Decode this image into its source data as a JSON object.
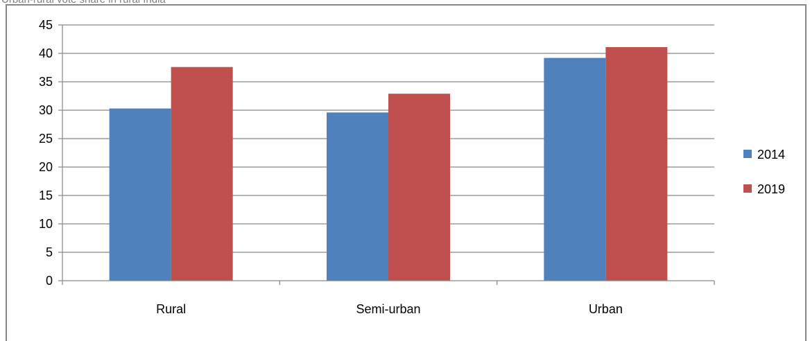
{
  "caption": "Urban-rural vote share in rural India",
  "chart_data": {
    "type": "bar",
    "categories": [
      "Rural",
      "Semi-urban",
      "Urban"
    ],
    "series": [
      {
        "name": "2014",
        "values": [
          30.3,
          29.6,
          39.2
        ],
        "color": "#4f81bd"
      },
      {
        "name": "2019",
        "values": [
          37.6,
          32.9,
          41.1
        ],
        "color": "#c0504d"
      }
    ],
    "title": "",
    "xlabel": "",
    "ylabel": "",
    "ylim": [
      0,
      45
    ],
    "yticks": [
      0,
      5,
      10,
      15,
      20,
      25,
      30,
      35,
      40,
      45
    ],
    "grid": true,
    "legend": "right"
  }
}
